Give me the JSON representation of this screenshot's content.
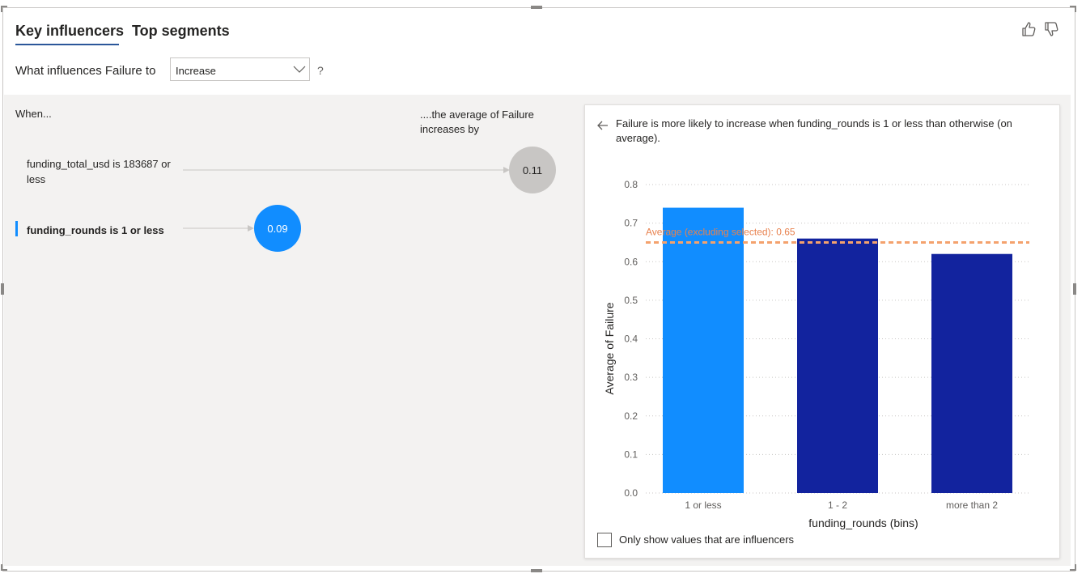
{
  "tabs": [
    {
      "label": "Key influencers",
      "active": true
    },
    {
      "label": "Top segments",
      "active": false
    }
  ],
  "feedback": {
    "like_icon": "thumbs-up-icon",
    "dislike_icon": "thumbs-down-icon"
  },
  "question": {
    "prompt": "What influences Failure to",
    "selected": "Increase",
    "help": "?"
  },
  "left_panel": {
    "when_header": "When...",
    "avg_header": "....the average of Failure increases by",
    "influencers": [
      {
        "label": "funding_total_usd is 183687 or less",
        "value": "0.11",
        "selected": false,
        "color": "#c8c6c4"
      },
      {
        "label": "funding_rounds is 1 or less",
        "value": "0.09",
        "selected": true,
        "color": "#118dff"
      }
    ]
  },
  "detail": {
    "explanation": "Failure is more likely to increase when funding_rounds is 1 or less than otherwise (on average).",
    "checkbox_label": "Only show values that are influencers",
    "checkbox_checked": false
  },
  "chart_data": {
    "type": "bar",
    "categories": [
      "1 or less",
      "1 - 2",
      "more than 2"
    ],
    "values": [
      0.74,
      0.66,
      0.62
    ],
    "bar_colors": [
      "#118dff",
      "#12239e",
      "#12239e"
    ],
    "xlabel": "funding_rounds (bins)",
    "ylabel": "Average of Failure",
    "ylim": [
      0,
      0.8
    ],
    "yticks": [
      "0.0",
      "0.1",
      "0.2",
      "0.3",
      "0.4",
      "0.5",
      "0.6",
      "0.7",
      "0.8"
    ],
    "grid": true,
    "reference_line": {
      "label": "Average (excluding selected): 0.65",
      "value": 0.65,
      "color": "#f4a26d"
    }
  }
}
